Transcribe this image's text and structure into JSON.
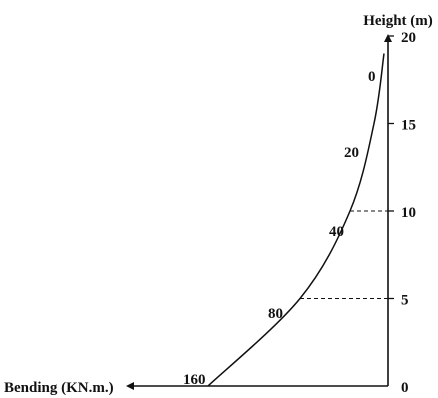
{
  "chart_data": {
    "type": "line",
    "xlabel": "Bending (KN.m.)",
    "ylabel": "Height (m)",
    "x_axis_direction": "right-to-left",
    "y_ticks": [
      0,
      5,
      10,
      15,
      20
    ],
    "ylim": [
      0,
      20
    ],
    "series": [
      {
        "points": [
          {
            "height": 19,
            "bending": 0
          },
          {
            "height": 15,
            "bending": 20
          },
          {
            "height": 10,
            "bending": 40
          },
          {
            "height": 5,
            "bending": 80
          },
          {
            "height": 0,
            "bending": 160
          }
        ]
      }
    ],
    "point_labels": [
      "0",
      "20",
      "40",
      "80",
      "160"
    ],
    "dashed_guides_at_heights": [
      10,
      5
    ],
    "grid": false,
    "legend": "none"
  }
}
